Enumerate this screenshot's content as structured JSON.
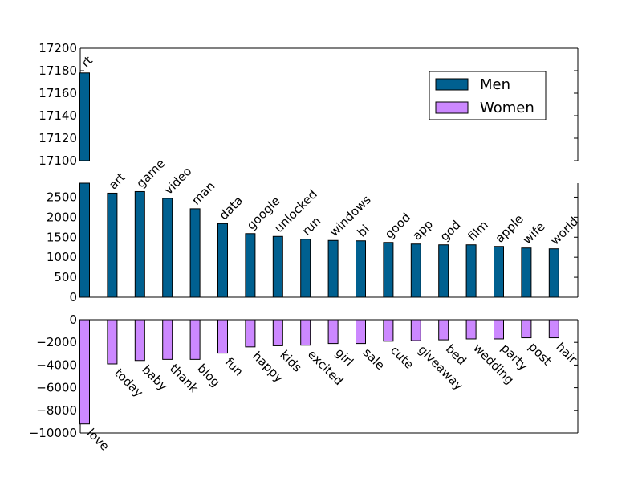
{
  "chart_data": {
    "type": "bar",
    "title": "",
    "xlabel": "",
    "colors": {
      "men": "#006090",
      "women": "#cc88ff"
    },
    "legend": {
      "placement": "top-right",
      "entries": [
        "Men",
        "Women"
      ]
    },
    "series": [
      {
        "name": "Men",
        "bars": [
          {
            "label": "rt",
            "value": 17178
          },
          {
            "label": "art",
            "value": 2600
          },
          {
            "label": "game",
            "value": 2640
          },
          {
            "label": "video",
            "value": 2470
          },
          {
            "label": "man",
            "value": 2210
          },
          {
            "label": "data",
            "value": 1840
          },
          {
            "label": "google",
            "value": 1590
          },
          {
            "label": "unlocked",
            "value": 1520
          },
          {
            "label": "run",
            "value": 1450
          },
          {
            "label": "windows",
            "value": 1420
          },
          {
            "label": "bi",
            "value": 1410
          },
          {
            "label": "good",
            "value": 1370
          },
          {
            "label": "app",
            "value": 1330
          },
          {
            "label": "god",
            "value": 1310
          },
          {
            "label": "film",
            "value": 1310
          },
          {
            "label": "apple",
            "value": 1270
          },
          {
            "label": "wife",
            "value": 1230
          },
          {
            "label": "world",
            "value": 1210
          }
        ]
      },
      {
        "name": "Women",
        "bars": [
          {
            "label": "love",
            "value": -9200
          },
          {
            "label": "today",
            "value": -3900
          },
          {
            "label": "baby",
            "value": -3600
          },
          {
            "label": "thank",
            "value": -3500
          },
          {
            "label": "blog",
            "value": -3500
          },
          {
            "label": "fun",
            "value": -2950
          },
          {
            "label": "happy",
            "value": -2400
          },
          {
            "label": "kids",
            "value": -2300
          },
          {
            "label": "excited",
            "value": -2250
          },
          {
            "label": "girl",
            "value": -2100
          },
          {
            "label": "sale",
            "value": -2100
          },
          {
            "label": "cute",
            "value": -1900
          },
          {
            "label": "giveaway",
            "value": -1850
          },
          {
            "label": "bed",
            "value": -1780
          },
          {
            "label": "wedding",
            "value": -1700
          },
          {
            "label": "party",
            "value": -1700
          },
          {
            "label": "post",
            "value": -1600
          },
          {
            "label": "hair",
            "value": -1600
          }
        ]
      }
    ],
    "panels": [
      {
        "name": "men-upper",
        "ylim": [
          17100,
          17200
        ],
        "yticks": [
          "17100",
          "17120",
          "17140",
          "17160",
          "17180",
          "17200"
        ]
      },
      {
        "name": "men-lower",
        "ylim": [
          0,
          2850
        ],
        "yticks": [
          "0",
          "500",
          "1000",
          "1500",
          "2000",
          "2500"
        ]
      },
      {
        "name": "women",
        "ylim": [
          -10000,
          0
        ],
        "yticks": [
          "−10000",
          "−8000",
          "−6000",
          "−4000",
          "−2000",
          "0"
        ]
      }
    ]
  }
}
